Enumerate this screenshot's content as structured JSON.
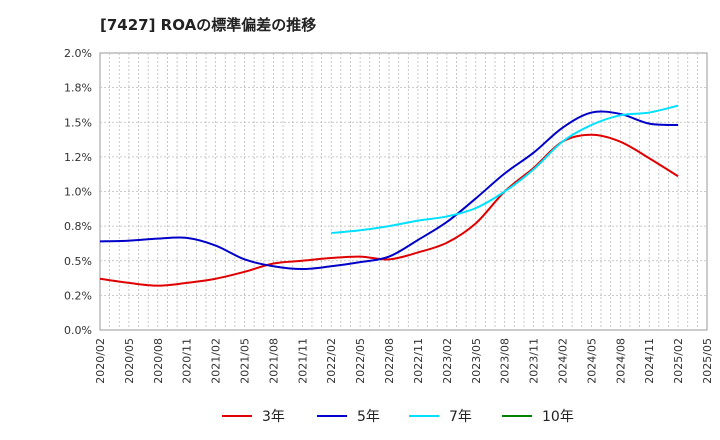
{
  "chart_data": {
    "type": "line",
    "title": "[7427]  ROAの標準偏差の推移",
    "xlabel": "",
    "ylabel": "",
    "ylim": [
      0,
      2.0
    ],
    "yticks": [
      "0.0%",
      "0.2%",
      "0.5%",
      "0.8%",
      "1.0%",
      "1.2%",
      "1.5%",
      "1.8%",
      "2.0%"
    ],
    "xticks": [
      "2020/02",
      "2020/05",
      "2020/08",
      "2020/11",
      "2021/02",
      "2021/05",
      "2021/08",
      "2021/11",
      "2022/02",
      "2022/05",
      "2022/08",
      "2022/11",
      "2023/02",
      "2023/05",
      "2023/08",
      "2023/11",
      "2024/02",
      "2024/05",
      "2024/08",
      "2024/11",
      "2025/02",
      "2025/05"
    ],
    "grid": true,
    "legend_position": "bottom",
    "series": [
      {
        "name": "3年",
        "color": "#e00000",
        "x": [
          "2020/02",
          "2020/05",
          "2020/08",
          "2020/11",
          "2021/02",
          "2021/05",
          "2021/08",
          "2021/11",
          "2022/02",
          "2022/05",
          "2022/08",
          "2022/11",
          "2023/02",
          "2023/05",
          "2023/08",
          "2023/11",
          "2024/02",
          "2024/05",
          "2024/08",
          "2024/11",
          "2025/02"
        ],
        "values": [
          0.37,
          0.34,
          0.32,
          0.34,
          0.37,
          0.42,
          0.48,
          0.5,
          0.52,
          0.53,
          0.51,
          0.56,
          0.63,
          0.77,
          1.0,
          1.17,
          1.36,
          1.41,
          1.36,
          1.24,
          1.11
        ]
      },
      {
        "name": "5年",
        "color": "#0000c8",
        "x": [
          "2020/02",
          "2020/05",
          "2020/08",
          "2020/11",
          "2021/02",
          "2021/05",
          "2021/08",
          "2021/11",
          "2022/02",
          "2022/05",
          "2022/08",
          "2022/11",
          "2023/02",
          "2023/05",
          "2023/08",
          "2023/11",
          "2024/02",
          "2024/05",
          "2024/08",
          "2024/11",
          "2025/02"
        ],
        "values": [
          0.64,
          0.645,
          0.66,
          0.665,
          0.61,
          0.51,
          0.46,
          0.44,
          0.46,
          0.49,
          0.53,
          0.65,
          0.78,
          0.95,
          1.13,
          1.28,
          1.46,
          1.57,
          1.56,
          1.49,
          1.48
        ]
      },
      {
        "name": "7年",
        "color": "#00e0ff",
        "x": [
          "2022/02",
          "2022/05",
          "2022/08",
          "2022/11",
          "2023/02",
          "2023/05",
          "2023/08",
          "2023/11",
          "2024/02",
          "2024/05",
          "2024/08",
          "2024/11",
          "2025/02"
        ],
        "values": [
          0.7,
          0.72,
          0.75,
          0.79,
          0.82,
          0.88,
          1.0,
          1.16,
          1.36,
          1.48,
          1.55,
          1.57,
          1.62
        ]
      },
      {
        "name": "10年",
        "color": "#008000",
        "x": [],
        "values": []
      }
    ]
  }
}
